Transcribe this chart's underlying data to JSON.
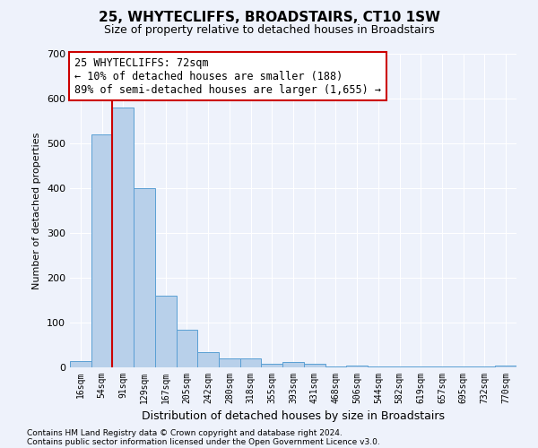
{
  "title": "25, WHYTECLIFFS, BROADSTAIRS, CT10 1SW",
  "subtitle": "Size of property relative to detached houses in Broadstairs",
  "xlabel": "Distribution of detached houses by size in Broadstairs",
  "ylabel": "Number of detached properties",
  "bar_color": "#b8d0ea",
  "bar_edge_color": "#5a9fd4",
  "background_color": "#eef2fb",
  "grid_color": "#ffffff",
  "annotation_text": "25 WHYTECLIFFS: 72sqm\n← 10% of detached houses are smaller (188)\n89% of semi-detached houses are larger (1,655) →",
  "annotation_box_color": "#ffffff",
  "annotation_border_color": "#cc0000",
  "vline_x": 1.5,
  "vline_color": "#cc0000",
  "footer_line1": "Contains HM Land Registry data © Crown copyright and database right 2024.",
  "footer_line2": "Contains public sector information licensed under the Open Government Licence v3.0.",
  "categories": [
    "16sqm",
    "54sqm",
    "91sqm",
    "129sqm",
    "167sqm",
    "205sqm",
    "242sqm",
    "280sqm",
    "318sqm",
    "355sqm",
    "393sqm",
    "431sqm",
    "468sqm",
    "506sqm",
    "544sqm",
    "582sqm",
    "619sqm",
    "657sqm",
    "695sqm",
    "732sqm",
    "770sqm"
  ],
  "values": [
    15,
    520,
    580,
    400,
    160,
    85,
    35,
    20,
    20,
    8,
    13,
    8,
    2,
    5,
    2,
    2,
    2,
    2,
    2,
    2,
    5
  ],
  "ylim": [
    0,
    700
  ],
  "yticks": [
    0,
    100,
    200,
    300,
    400,
    500,
    600,
    700
  ]
}
